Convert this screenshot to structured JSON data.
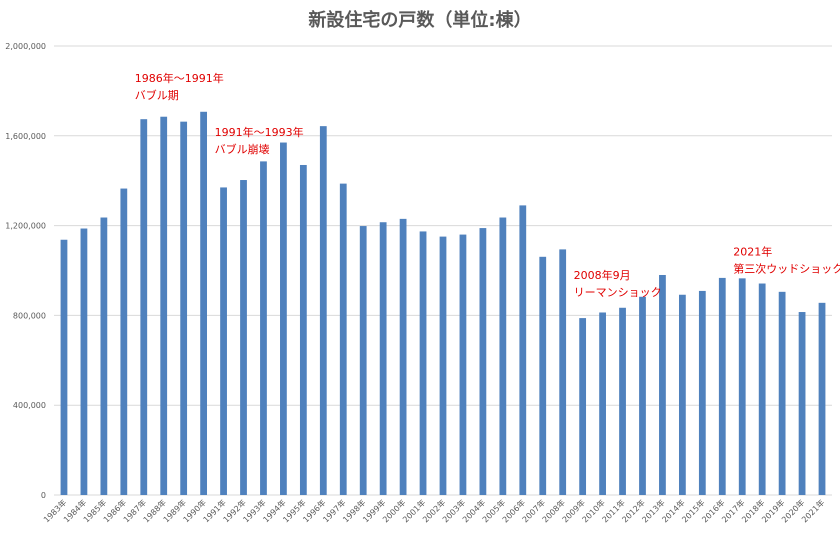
{
  "chart_data": {
    "type": "bar",
    "title": "新設住宅の戸数（単位:棟）",
    "xlabel": "",
    "ylabel": "",
    "ylim": [
      0,
      2000000
    ],
    "yticks": [
      "0",
      "400,000",
      "800,000",
      "1,200,000",
      "1,600,000",
      "2,000,000"
    ],
    "ytick_values": [
      0,
      400000,
      800000,
      1200000,
      1600000,
      2000000
    ],
    "grid": true,
    "legend": "none",
    "colors": {
      "bar": "#4f81bd",
      "annotation": "#e00000"
    },
    "categories": [
      "1983年",
      "1984年",
      "1985年",
      "1986年",
      "1987年",
      "1988年",
      "1989年",
      "1990年",
      "1991年",
      "1992年",
      "1993年",
      "1994年",
      "1995年",
      "1996年",
      "1997年",
      "1998年",
      "1999年",
      "2000年",
      "2001年",
      "2002年",
      "2003年",
      "2004年",
      "2005年",
      "2006年",
      "2007年",
      "2008年",
      "2009年",
      "2010年",
      "2011年",
      "2012年",
      "2013年",
      "2014年",
      "2015年",
      "2016年",
      "2017年",
      "2018年",
      "2019年",
      "2020年",
      "2021年"
    ],
    "values": [
      1137000,
      1187000,
      1236000,
      1365000,
      1674000,
      1685000,
      1663000,
      1707000,
      1370000,
      1403000,
      1486000,
      1570000,
      1470000,
      1643000,
      1387000,
      1198000,
      1215000,
      1230000,
      1174000,
      1151000,
      1160000,
      1189000,
      1236000,
      1290000,
      1061000,
      1094000,
      788000,
      813000,
      834000,
      883000,
      980000,
      892000,
      909000,
      967000,
      965000,
      942000,
      905000,
      815000,
      856000
    ],
    "annotations": [
      {
        "lines": [
          "1986年〜1991年",
          "バブル期"
        ],
        "category": "1987年",
        "value": 1840000
      },
      {
        "lines": [
          "1991年〜1993年",
          "バブル崩壊"
        ],
        "category": "1991年",
        "value": 1600000
      },
      {
        "lines": [
          "2008年9月",
          "リーマンショック"
        ],
        "category": "2009年",
        "value": 962000
      },
      {
        "lines": [
          "2021年",
          "第三次ウッドショック"
        ],
        "category": "2017年",
        "value": 1067000
      }
    ]
  }
}
